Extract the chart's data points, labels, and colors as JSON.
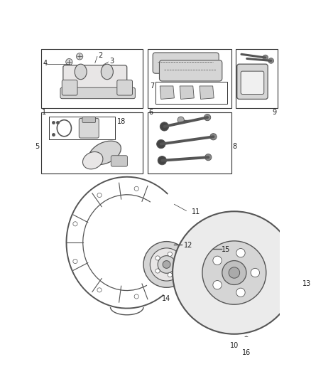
{
  "bg_color": "#ffffff",
  "line_color": "#333333",
  "label_color": "#222222",
  "part_color": "#555555",
  "light_part": "#d5d5d5",
  "lighter_part": "#e8e6e6"
}
